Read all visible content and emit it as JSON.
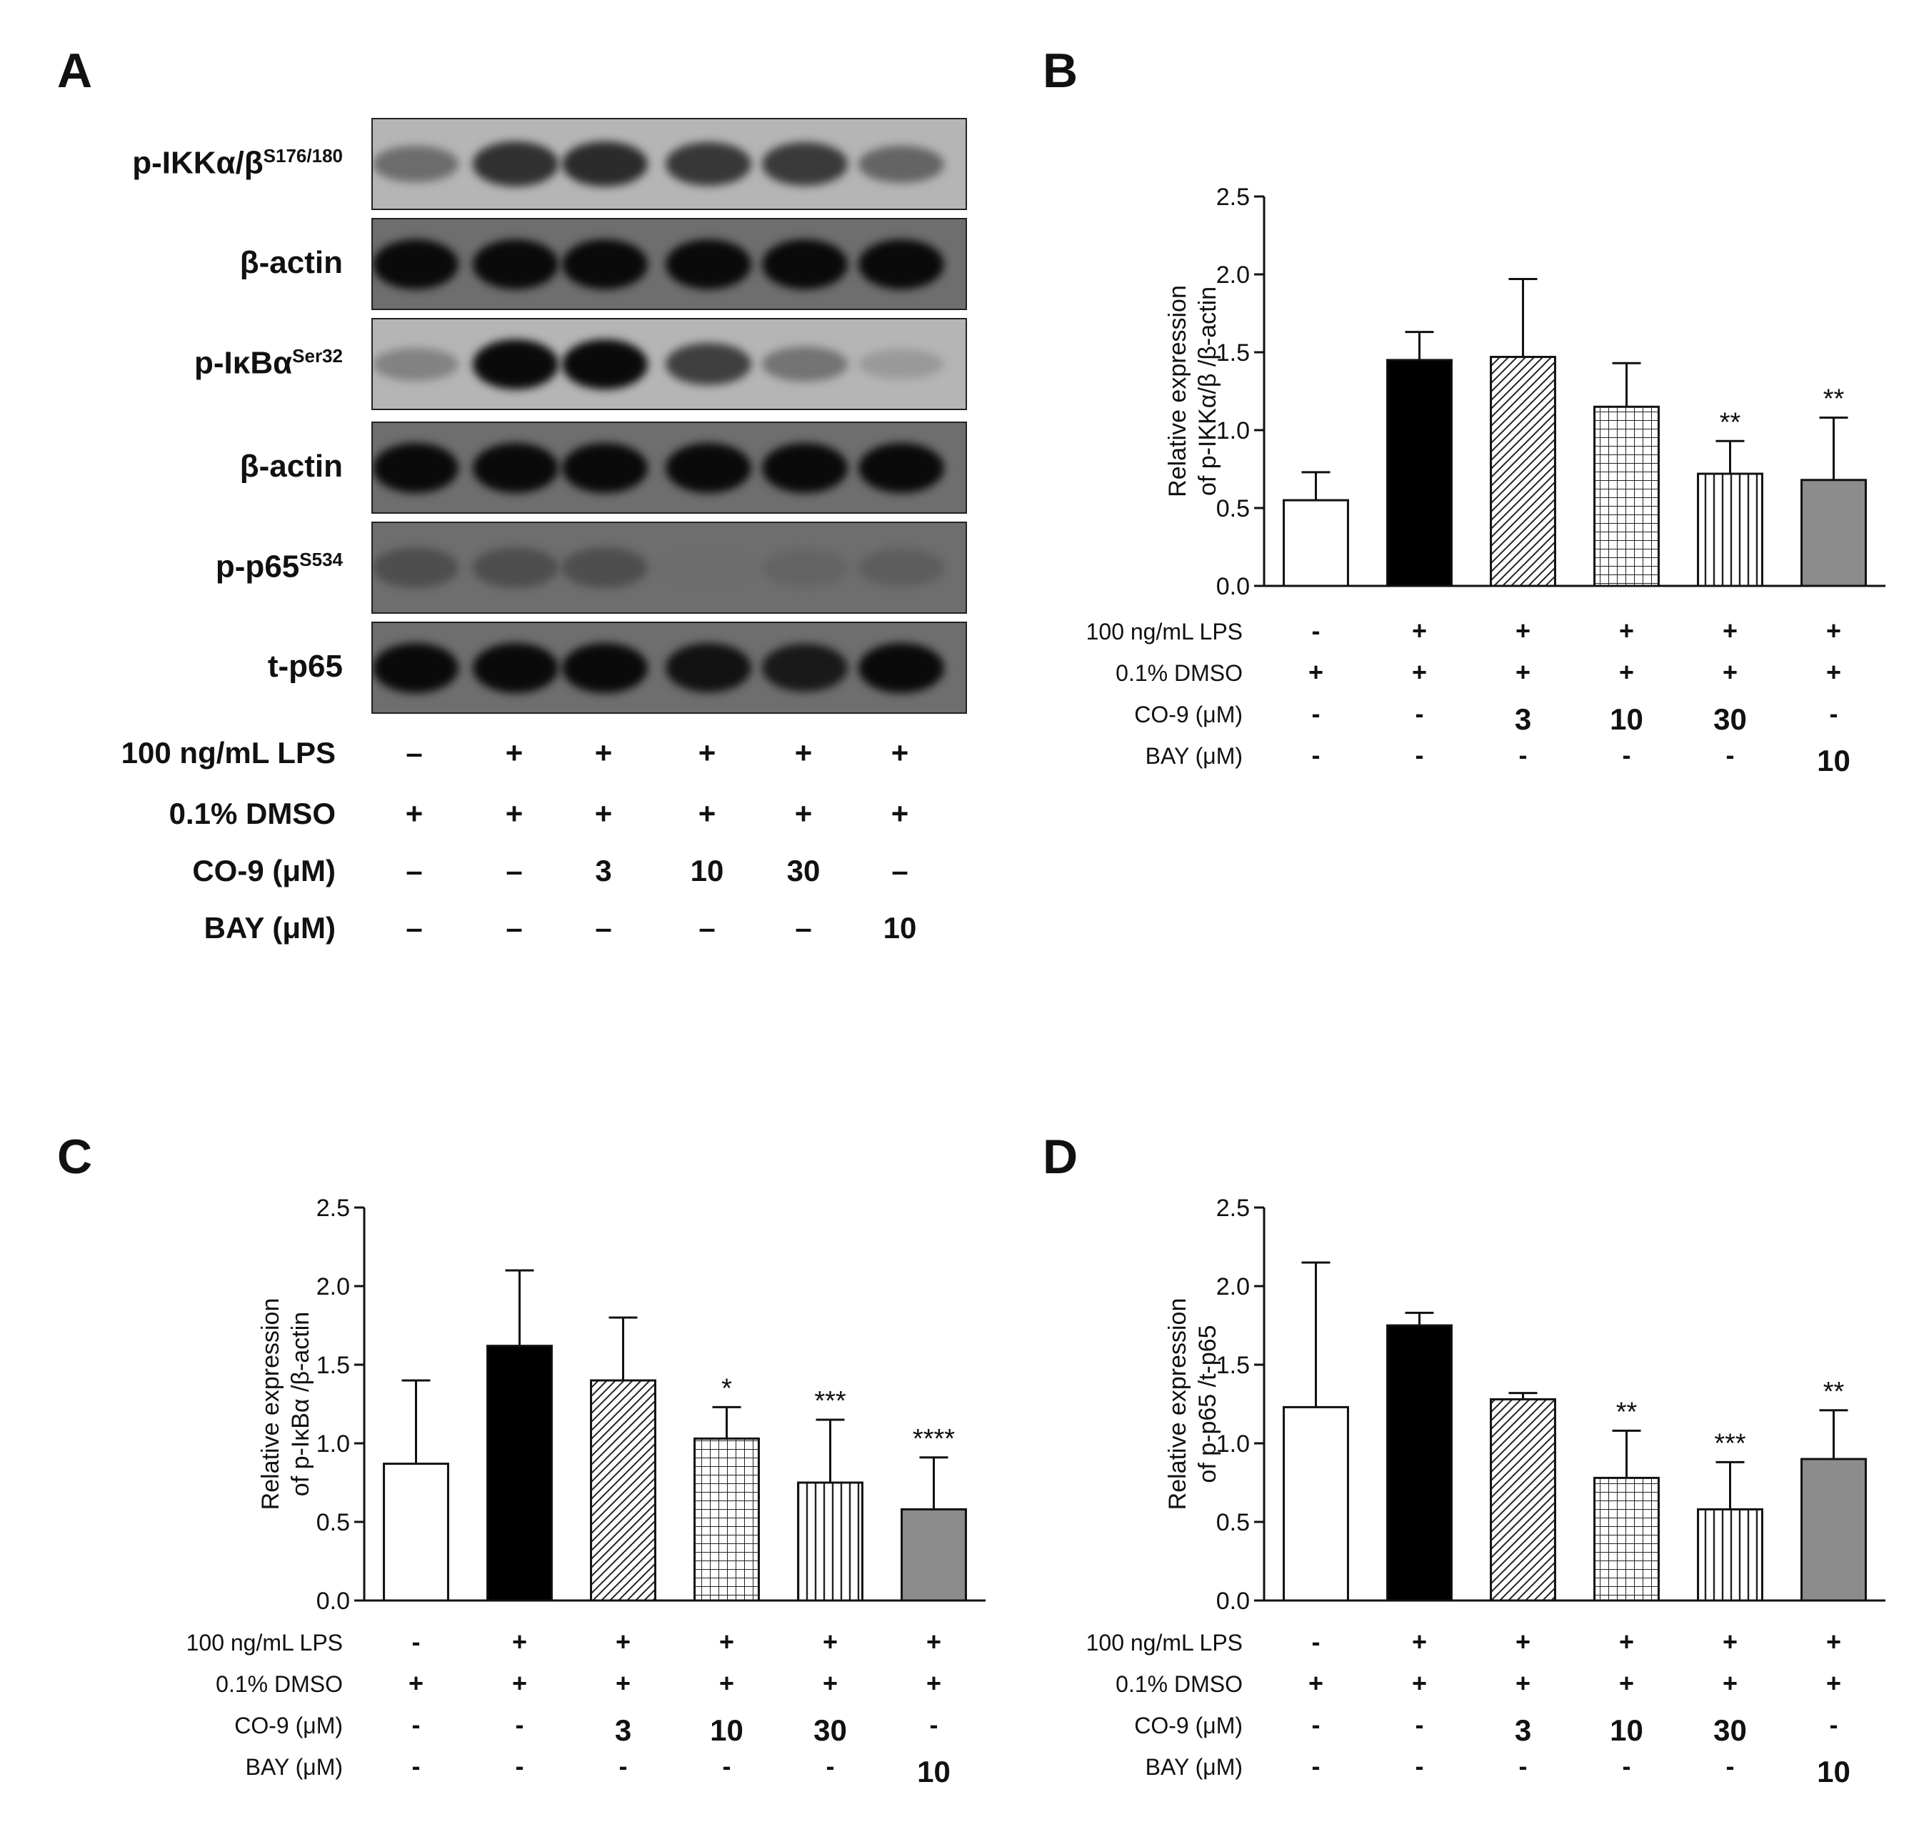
{
  "panels": {
    "A": "A",
    "B": "B",
    "C": "C",
    "D": "D"
  },
  "western_blot": {
    "lanes": 6,
    "bands": [
      {
        "label": "p-IKKα/β",
        "sup": "S176/180",
        "intensity": [
          0.35,
          0.75,
          0.78,
          0.7,
          0.68,
          0.4
        ]
      },
      {
        "label": "β-actin",
        "sup": "",
        "intensity": [
          1,
          1,
          1,
          1,
          1,
          1
        ]
      },
      {
        "label": "p-IκBα",
        "sup": "Ser32",
        "intensity": [
          0.2,
          1,
          1,
          0.65,
          0.3,
          0.05
        ]
      },
      {
        "label": "β-actin",
        "sup": "",
        "intensity": [
          1,
          1,
          1,
          1,
          1,
          1
        ]
      },
      {
        "label": "p-p65",
        "sup": "S534",
        "intensity": [
          0.55,
          0.55,
          0.55,
          0.35,
          0.4,
          0.45
        ]
      },
      {
        "label": "t-p65",
        "sup": "",
        "intensity": [
          1,
          1,
          1,
          0.95,
          0.9,
          1
        ]
      }
    ],
    "conditions": [
      {
        "label": "100 ng/mL LPS",
        "values": [
          "–",
          "+",
          "+",
          "+",
          "+",
          "+"
        ]
      },
      {
        "label": "0.1% DMSO",
        "values": [
          "+",
          "+",
          "+",
          "+",
          "+",
          "+"
        ]
      },
      {
        "label": "CO-9 (μM)",
        "values": [
          "–",
          "–",
          "3",
          "10",
          "30",
          "–"
        ]
      },
      {
        "label": "BAY  (μM)",
        "values": [
          "–",
          "–",
          "–",
          "–",
          "–",
          "10"
        ]
      }
    ]
  },
  "chart_conditions": [
    {
      "label": "100 ng/mL LPS",
      "values": [
        "-",
        "+",
        "+",
        "+",
        "+",
        "+"
      ]
    },
    {
      "label": "0.1% DMSO",
      "values": [
        "+",
        "+",
        "+",
        "+",
        "+",
        "+"
      ]
    },
    {
      "label": "CO-9 (μM)",
      "values": [
        "-",
        "-",
        "3",
        "10",
        "30",
        "-"
      ]
    },
    {
      "label": "BAY  (μM)",
      "values": [
        "-",
        "-",
        "-",
        "-",
        "-",
        "10"
      ]
    }
  ],
  "chart_data": [
    {
      "panel": "B",
      "type": "bar",
      "ylabel_line1": "Relative expression",
      "ylabel_line2": "of  p-IKKα/β /β-actin",
      "ylim": [
        0,
        2.5
      ],
      "yticks": [
        "0.0",
        "0.5",
        "1.0",
        "1.5",
        "2.0",
        "2.5"
      ],
      "values": [
        0.55,
        1.45,
        1.47,
        1.15,
        0.72,
        0.68
      ],
      "errors": [
        0.18,
        0.18,
        0.5,
        0.28,
        0.21,
        0.4
      ],
      "significance": [
        "",
        "",
        "",
        "",
        "**",
        "**"
      ],
      "fills": [
        "white",
        "black",
        "diag",
        "grid",
        "vert",
        "gray"
      ]
    },
    {
      "panel": "C",
      "type": "bar",
      "ylabel_line1": "Relative expression",
      "ylabel_line2": "of  p-IκBα /β-actin",
      "ylim": [
        0,
        2.5
      ],
      "yticks": [
        "0.0",
        "0.5",
        "1.0",
        "1.5",
        "2.0",
        "2.5"
      ],
      "values": [
        0.87,
        1.62,
        1.4,
        1.03,
        0.75,
        0.58
      ],
      "errors": [
        0.53,
        0.48,
        0.4,
        0.2,
        0.4,
        0.33
      ],
      "significance": [
        "",
        "",
        "",
        "*",
        "***",
        "****"
      ],
      "fills": [
        "white",
        "black",
        "diag",
        "grid",
        "vert",
        "gray"
      ]
    },
    {
      "panel": "D",
      "type": "bar",
      "ylabel_line1": "Relative expression",
      "ylabel_line2": "of  p-p65 /t-p65",
      "ylim": [
        0,
        2.5
      ],
      "yticks": [
        "0.0",
        "0.5",
        "1.0",
        "1.5",
        "2.0",
        "2.5"
      ],
      "values": [
        1.23,
        1.75,
        1.28,
        0.78,
        0.58,
        0.9
      ],
      "errors": [
        0.92,
        0.08,
        0.04,
        0.3,
        0.3,
        0.31
      ],
      "significance": [
        "",
        "",
        "",
        "**",
        "***",
        "**"
      ],
      "fills": [
        "white",
        "black",
        "diag",
        "grid",
        "vert",
        "gray"
      ]
    }
  ],
  "colors": {
    "bar_gray": "#8c8c8c",
    "ink": "#111111"
  }
}
